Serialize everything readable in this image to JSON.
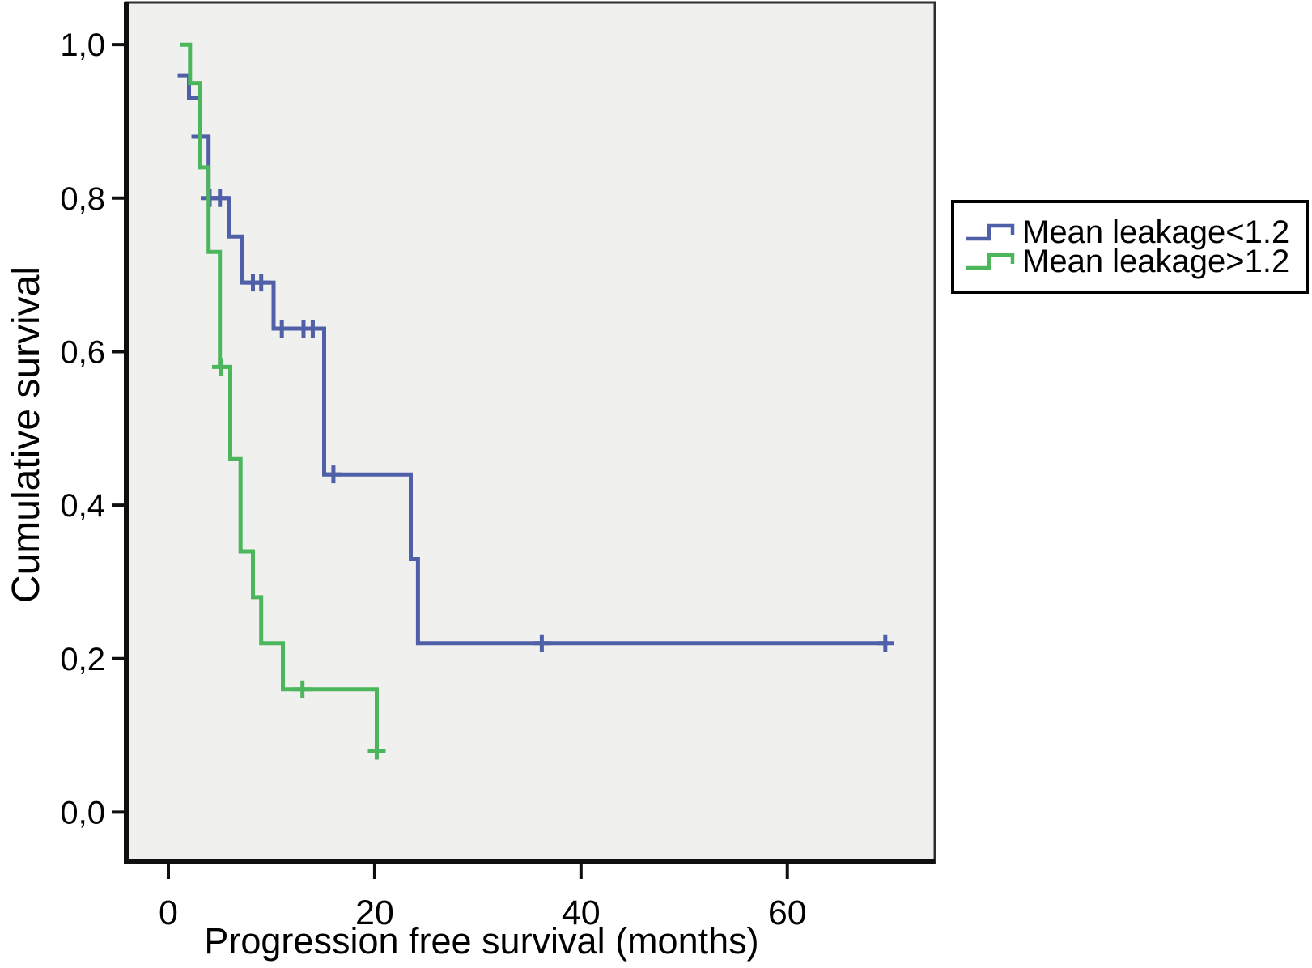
{
  "chart_data": {
    "type": "line",
    "subtype": "kaplan-meier-step",
    "title": "",
    "xlabel": "Progression free survival (months)",
    "ylabel": "Cumulative survival",
    "grid": false,
    "plot_bg": "#f0f0ef",
    "frame_color": "#2e2e2e",
    "axis_color": "#0f0f0f",
    "xlim": [
      -4.08,
      74.3
    ],
    "ylim": [
      -0.066,
      1.055
    ],
    "xticks": [
      0,
      20,
      40,
      60
    ],
    "xtick_labels": [
      "0",
      "20",
      "40",
      "60"
    ],
    "ytick_values": [
      0.0,
      0.2,
      0.4,
      0.6,
      0.8,
      1.0
    ],
    "ytick_labels": [
      "0,0",
      "0,2",
      "0,4",
      "0,6",
      "0,8",
      "1,0"
    ],
    "legend": {
      "position": "right",
      "border": true,
      "entries": [
        {
          "label": "Mean leakage<1.2",
          "color": "#4f5fa8"
        },
        {
          "label": "Mean leakage>1.2",
          "color": "#4cb65c"
        }
      ]
    },
    "series": [
      {
        "name": "Mean leakage<1.2",
        "color": "#4f5fa8",
        "points": [
          [
            0.9,
            0.96
          ],
          [
            2.0,
            0.93
          ],
          [
            3.1,
            0.88
          ],
          [
            3.9,
            0.8
          ],
          [
            5.9,
            0.75
          ],
          [
            7.1,
            0.69
          ],
          [
            10.2,
            0.63
          ],
          [
            15.1,
            0.44
          ],
          [
            23.5,
            0.33
          ],
          [
            24.2,
            0.22
          ]
        ],
        "end_time": 69.8,
        "censors": [
          [
            3.1,
            0.88
          ],
          [
            4.0,
            0.8
          ],
          [
            5.0,
            0.8
          ],
          [
            8.2,
            0.69
          ],
          [
            9.0,
            0.69
          ],
          [
            11.0,
            0.63
          ],
          [
            13.1,
            0.63
          ],
          [
            14.0,
            0.63
          ],
          [
            16.0,
            0.44
          ],
          [
            36.2,
            0.22
          ],
          [
            69.5,
            0.22
          ]
        ]
      },
      {
        "name": "Mean leakage>1.2",
        "color": "#4cb65c",
        "points": [
          [
            1.1,
            1.0
          ],
          [
            2.1,
            0.95
          ],
          [
            3.1,
            0.84
          ],
          [
            3.9,
            0.73
          ],
          [
            5.0,
            0.58
          ],
          [
            6.0,
            0.46
          ],
          [
            7.0,
            0.34
          ],
          [
            8.2,
            0.28
          ],
          [
            9.0,
            0.22
          ],
          [
            11.1,
            0.16
          ],
          [
            20.2,
            0.08
          ]
        ],
        "end_time": 20.2,
        "censors": [
          [
            5.1,
            0.58
          ],
          [
            13.0,
            0.16
          ],
          [
            20.2,
            0.08
          ]
        ]
      }
    ]
  }
}
